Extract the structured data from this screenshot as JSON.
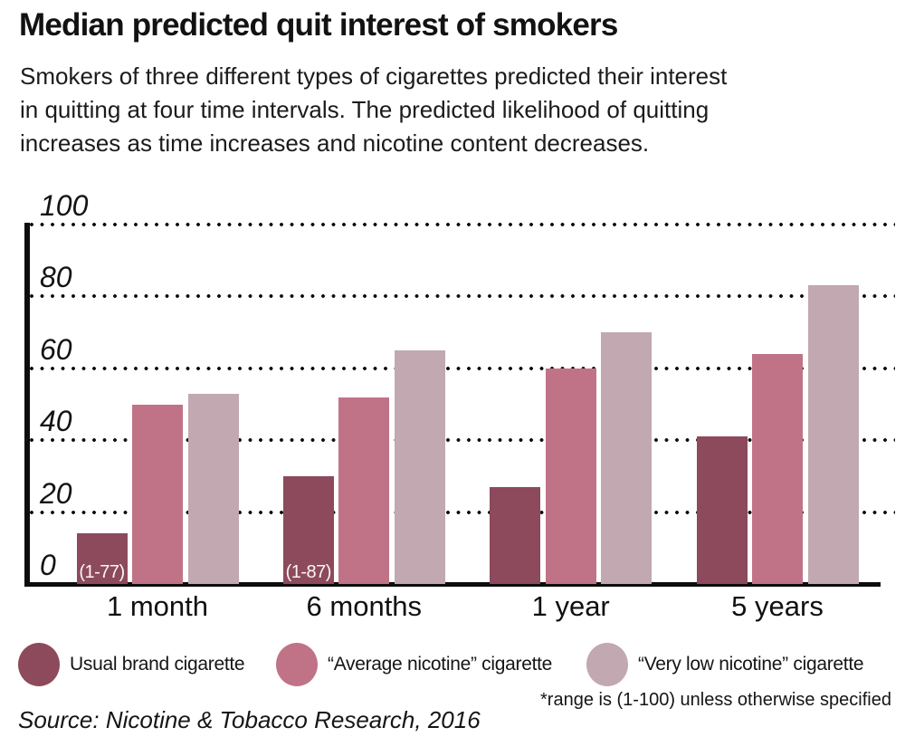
{
  "header": {
    "title": "Median predicted quit interest of smokers",
    "subtitle_lines": [
      "Smokers of three different types of cigarettes predicted their interest",
      "in quitting at four time intervals. The predicted likelihood of quitting",
      "increases as time increases and nicotine content decreases."
    ]
  },
  "chart_data": {
    "type": "bar",
    "title": "Median predicted quit interest of smokers",
    "categories": [
      "1 month",
      "6 months",
      "1 year",
      "5 years"
    ],
    "series": [
      {
        "name": "Usual brand cigarette",
        "color": "#8c4a5c",
        "values": [
          14,
          30,
          27,
          41
        ],
        "annotations": [
          "(1-77)",
          "(1-87)",
          "",
          ""
        ]
      },
      {
        "name": "“Average nicotine” cigarette",
        "color": "#c07387",
        "values": [
          50,
          52,
          60,
          64
        ]
      },
      {
        "name": "“Very low nicotine” cigarette",
        "color": "#c2a8b1",
        "values": [
          53,
          65,
          70,
          83
        ]
      }
    ],
    "ylim": [
      0,
      100
    ],
    "yticks": [
      0,
      20,
      40,
      60,
      80,
      100
    ],
    "xlabel": "",
    "ylabel": "",
    "grid": "horizontal-dotted",
    "legend_position": "bottom"
  },
  "notes": {
    "range_note": "*range is (1-100) unless otherwise specified",
    "source": "Source: Nicotine & Tobacco Research, 2016"
  }
}
